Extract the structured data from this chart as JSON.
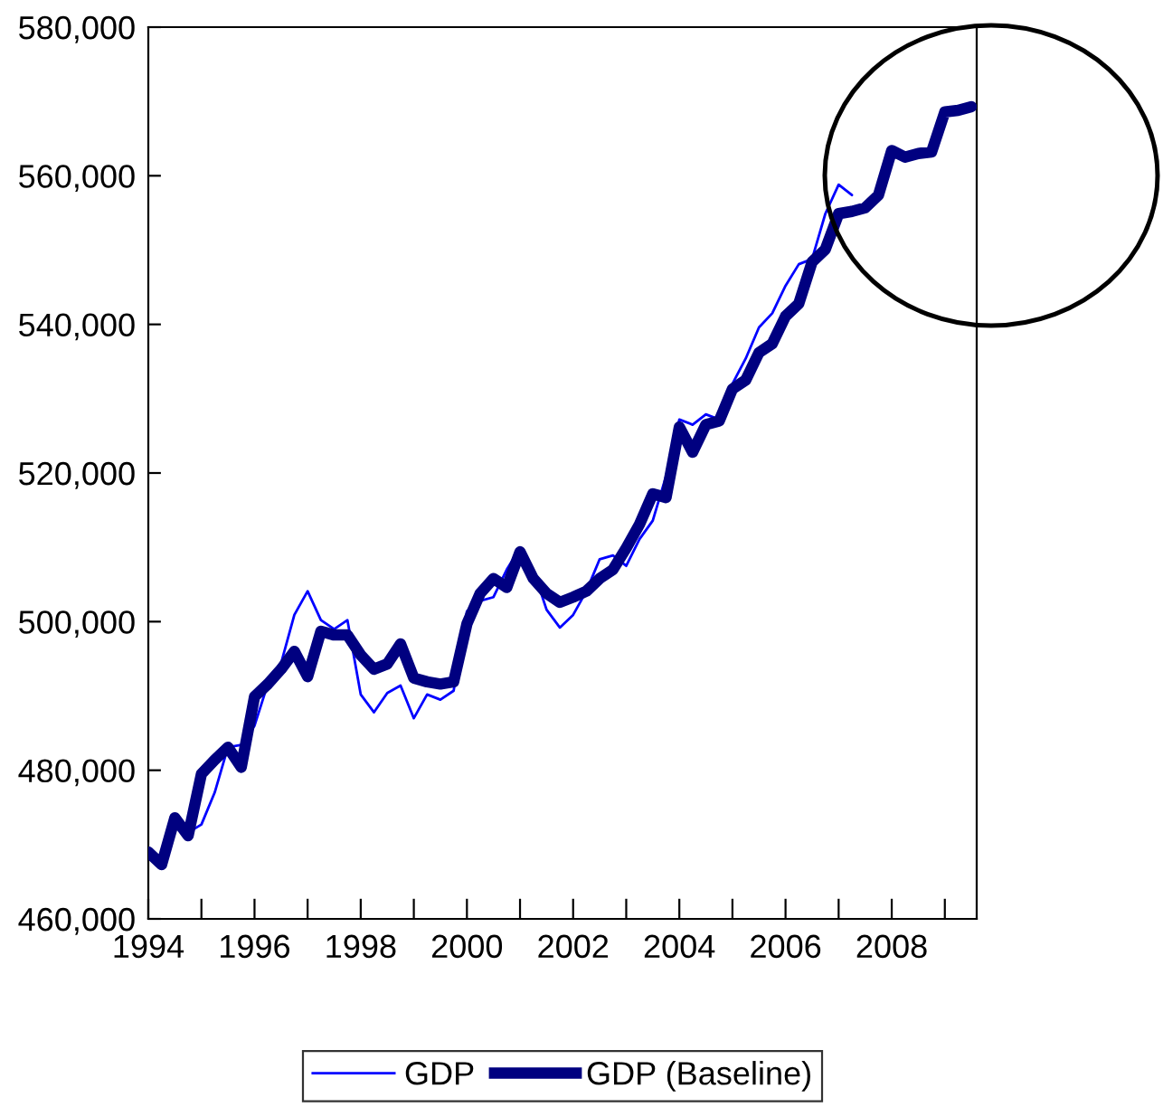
{
  "chart_data": {
    "type": "line",
    "x": [
      1994.0,
      1994.25,
      1994.5,
      1994.75,
      1995.0,
      1995.25,
      1995.5,
      1995.75,
      1996.0,
      1996.25,
      1996.5,
      1996.75,
      1997.0,
      1997.25,
      1997.5,
      1997.75,
      1998.0,
      1998.25,
      1998.5,
      1998.75,
      1999.0,
      1999.25,
      1999.5,
      1999.75,
      2000.0,
      2000.25,
      2000.5,
      2000.75,
      2001.0,
      2001.25,
      2001.5,
      2001.75,
      2002.0,
      2002.25,
      2002.5,
      2002.75,
      2003.0,
      2003.25,
      2003.5,
      2003.75,
      2004.0,
      2004.25,
      2004.5,
      2004.75,
      2005.0,
      2005.25,
      2005.5,
      2005.75,
      2006.0,
      2006.25,
      2006.5,
      2006.75,
      2007.0,
      2007.25,
      2007.5,
      2007.75,
      2008.0,
      2008.25,
      2008.5,
      2008.75,
      2009.0,
      2009.25,
      2009.5
    ],
    "series": [
      {
        "name": "GDP",
        "color": "#0000ff",
        "values": [
          null,
          null,
          473600,
          471600,
          472700,
          477000,
          483100,
          483400,
          486000,
          491600,
          494400,
          500900,
          504100,
          500200,
          499000,
          500200,
          490200,
          487800,
          490400,
          491400,
          487000,
          490200,
          489500,
          490700,
          501400,
          502800,
          503300,
          507000,
          509900,
          507000,
          501600,
          499200,
          500900,
          504100,
          508400,
          508900,
          507500,
          511100,
          513600,
          519600,
          527200,
          526500,
          527900,
          527200,
          532000,
          535400,
          539600,
          541500,
          545200,
          548100,
          548800,
          554900,
          558800,
          557400,
          null,
          null,
          null,
          null,
          null,
          null,
          null,
          null,
          null
        ]
      },
      {
        "name": "GDP (Baseline)",
        "color": "#000080",
        "values": [
          469000,
          467300,
          473600,
          471200,
          479500,
          481400,
          483100,
          480400,
          489900,
          491600,
          493600,
          496000,
          492600,
          498700,
          498200,
          498200,
          495500,
          493600,
          494300,
          497000,
          492400,
          491900,
          491600,
          491900,
          499700,
          503800,
          505800,
          504600,
          509400,
          505800,
          503800,
          502600,
          503300,
          504100,
          505800,
          507000,
          509900,
          513100,
          517200,
          516700,
          526200,
          522800,
          526500,
          527000,
          531300,
          532500,
          536200,
          537400,
          541100,
          542800,
          548400,
          550100,
          554900,
          555200,
          555700,
          557400,
          563400,
          562500,
          563000,
          563200,
          568600,
          568800,
          569300
        ]
      }
    ],
    "xlim": [
      1994,
      2009.6
    ],
    "ylim": [
      460000,
      580000
    ],
    "xticks": [
      {
        "value": 1994,
        "label": "1994"
      },
      {
        "value": 1995,
        "label": null
      },
      {
        "value": 1996,
        "label": "1996"
      },
      {
        "value": 1997,
        "label": null
      },
      {
        "value": 1998,
        "label": "1998"
      },
      {
        "value": 1999,
        "label": null
      },
      {
        "value": 2000,
        "label": "2000"
      },
      {
        "value": 2001,
        "label": null
      },
      {
        "value": 2002,
        "label": "2002"
      },
      {
        "value": 2003,
        "label": null
      },
      {
        "value": 2004,
        "label": "2004"
      },
      {
        "value": 2005,
        "label": null
      },
      {
        "value": 2006,
        "label": "2006"
      },
      {
        "value": 2007,
        "label": null
      },
      {
        "value": 2008,
        "label": "2008"
      },
      {
        "value": 2009,
        "label": null
      }
    ],
    "yticks": [
      {
        "value": 460000,
        "label": "460,000"
      },
      {
        "value": 480000,
        "label": "480,000"
      },
      {
        "value": 500000,
        "label": "500,000"
      },
      {
        "value": 520000,
        "label": "520,000"
      },
      {
        "value": 540000,
        "label": "540,000"
      },
      {
        "value": 560000,
        "label": "560,000"
      },
      {
        "value": 580000,
        "label": "580,000"
      }
    ],
    "legend": "bottom",
    "grid": false,
    "marker": "none",
    "line_style": "solid"
  }
}
